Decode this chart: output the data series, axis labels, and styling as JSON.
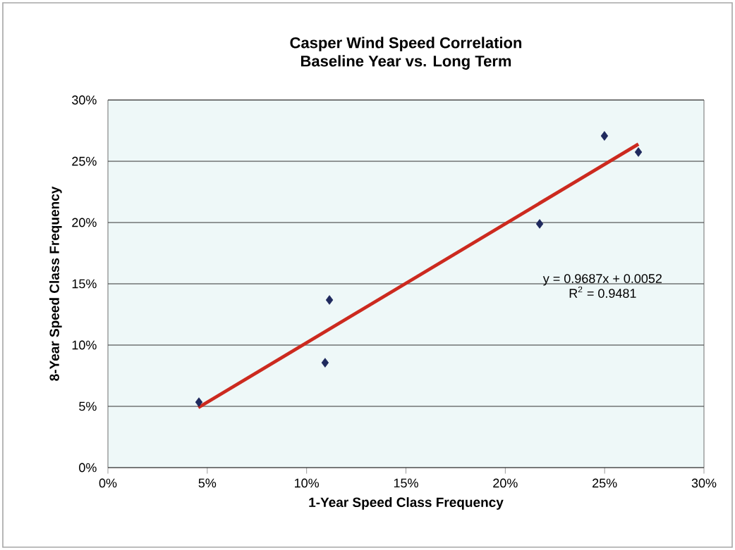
{
  "chart_data": {
    "type": "scatter",
    "title": "Casper Wind Speed Correlation",
    "subtitle": "Baseline Year vs. Long Term",
    "xlabel": "1-Year Speed Class Frequency",
    "ylabel": "8-Year Speed Class Frequency",
    "series": [
      {
        "color": "#1f2a5e",
        "marker": "diamond",
        "x": [
          0.0458,
          0.1093,
          0.1115,
          0.2173,
          0.2499,
          0.267
        ],
        "values": [
          0.0534,
          0.0856,
          0.1368,
          0.1989,
          0.2707,
          0.2575
        ]
      },
      {
        "type": "line",
        "color": "#cc2a1f",
        "marker": "none",
        "line_style": "solid",
        "x": [
          0.0455,
          0.267
        ],
        "values": [
          0.049,
          0.264
        ]
      }
    ],
    "annotations": [
      "y = 0.9687x + 0.0052",
      "R$^{2}$ = 0.9481"
    ],
    "xlim": [
      0,
      0.3
    ],
    "ylim": [
      0,
      0.3
    ],
    "xticks": [
      {
        "value": 0,
        "label": "0%"
      },
      {
        "value": 0.05,
        "label": "5%"
      },
      {
        "value": 0.1,
        "label": "10%"
      },
      {
        "value": 0.15,
        "label": "15%"
      },
      {
        "value": 0.2,
        "label": "20%"
      },
      {
        "value": 0.25,
        "label": "25%"
      },
      {
        "value": 0.3,
        "label": "30%"
      }
    ],
    "yticks": [
      {
        "value": 0,
        "label": "0%"
      },
      {
        "value": 0.05,
        "label": "5%"
      },
      {
        "value": 0.1,
        "label": "10%"
      },
      {
        "value": 0.15,
        "label": "15%"
      },
      {
        "value": 0.2,
        "label": "20%"
      },
      {
        "value": 0.25,
        "label": "25%"
      },
      {
        "value": 0.3,
        "label": "30%"
      }
    ],
    "grid": "y"
  }
}
